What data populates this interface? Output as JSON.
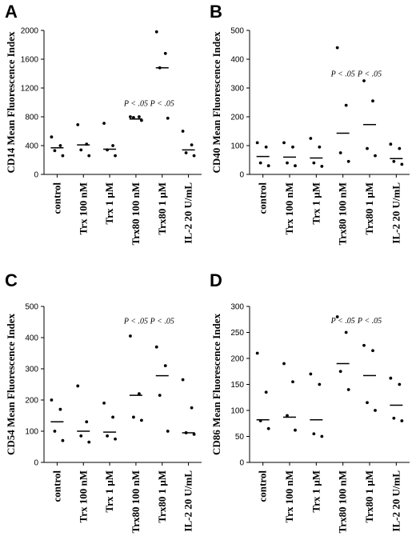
{
  "chart_data": [
    {
      "type": "scatter",
      "panel": "A",
      "ylabel": "CD14 Mean Fluorescence Index",
      "ylim": [
        0,
        2000
      ],
      "yticks": [
        0,
        400,
        800,
        1200,
        1600,
        2000
      ],
      "categories": [
        "control",
        "Trx 100 nM",
        "Trx 1 μM",
        "Trx80 100 nM",
        "Trx80 1 μM",
        "IL-2 20 U/mL"
      ],
      "points": [
        [
          520,
          400,
          330,
          260
        ],
        [
          690,
          420,
          340,
          260
        ],
        [
          710,
          400,
          340,
          260
        ],
        [
          800,
          800,
          790,
          750
        ],
        [
          1980,
          1680,
          1480,
          780
        ],
        [
          600,
          410,
          300,
          260
        ]
      ],
      "medians": [
        370,
        410,
        350,
        770,
        1480,
        340
      ],
      "annotations": [
        {
          "category": "Trx80 100 nM",
          "text": "P < .05",
          "y": 950
        },
        {
          "category": "Trx80 1 μM",
          "text": "P < .05",
          "y": 950
        }
      ]
    },
    {
      "type": "scatter",
      "panel": "B",
      "ylabel": "CD40 Mean Fluorescence Index",
      "ylim": [
        0,
        500
      ],
      "yticks": [
        0,
        100,
        200,
        300,
        400,
        500
      ],
      "categories": [
        "control",
        "Trx 100 nM",
        "Trx 1 μM",
        "Trx80 100 nM",
        "Trx80 1 μM",
        "IL-2 20 U/mL"
      ],
      "points": [
        [
          110,
          95,
          40,
          30
        ],
        [
          110,
          95,
          40,
          30
        ],
        [
          125,
          95,
          40,
          28
        ],
        [
          440,
          240,
          75,
          45
        ],
        [
          325,
          255,
          90,
          65
        ],
        [
          105,
          90,
          45,
          35
        ]
      ],
      "medians": [
        62,
        60,
        57,
        143,
        173,
        55
      ],
      "annotations": [
        {
          "category": "Trx80 100 nM",
          "text": "P < .05",
          "y": 340
        },
        {
          "category": "Trx80 1 μM",
          "text": "P < .05",
          "y": 340
        }
      ]
    },
    {
      "type": "scatter",
      "panel": "C",
      "ylabel": "CD54 Mean Fluorescence Index",
      "ylim": [
        0,
        500
      ],
      "yticks": [
        0,
        100,
        200,
        300,
        400,
        500
      ],
      "categories": [
        "control",
        "Trx 100 nM",
        "Trx 1 μM",
        "Trx80 100 nM",
        "Trx80 1 μM",
        "IL-2 20 U/mL"
      ],
      "points": [
        [
          200,
          170,
          100,
          70
        ],
        [
          245,
          130,
          85,
          65
        ],
        [
          190,
          145,
          85,
          75
        ],
        [
          405,
          220,
          145,
          135
        ],
        [
          370,
          310,
          215,
          100
        ],
        [
          265,
          175,
          95,
          90
        ]
      ],
      "medians": [
        130,
        100,
        97,
        215,
        278,
        95
      ],
      "annotations": [
        {
          "category": "Trx80 100 nM",
          "text": "P < .05",
          "y": 445
        },
        {
          "category": "Trx80 1 μM",
          "text": "P < .05",
          "y": 445
        }
      ]
    },
    {
      "type": "scatter",
      "panel": "D",
      "ylabel": "CD86 Mean Fluorescence Index",
      "ylim": [
        0,
        300
      ],
      "yticks": [
        0,
        50,
        100,
        150,
        200,
        250,
        300
      ],
      "categories": [
        "control",
        "Trx 100 nM",
        "Trx 1 μM",
        "Trx80 100 nM",
        "Trx80 1 μM",
        "IL-2 20 U/mL"
      ],
      "points": [
        [
          210,
          135,
          80,
          65
        ],
        [
          190,
          155,
          90,
          62
        ],
        [
          170,
          150,
          55,
          50
        ],
        [
          280,
          250,
          175,
          140
        ],
        [
          225,
          215,
          115,
          100
        ],
        [
          162,
          150,
          85,
          80
        ]
      ],
      "medians": [
        82,
        87,
        82,
        190,
        167,
        110
      ],
      "annotations": [
        {
          "category": "Trx80 100 nM",
          "text": "P < .05",
          "y": 268
        },
        {
          "category": "Trx80 1 μM",
          "text": "P < .05",
          "y": 268
        }
      ]
    }
  ]
}
